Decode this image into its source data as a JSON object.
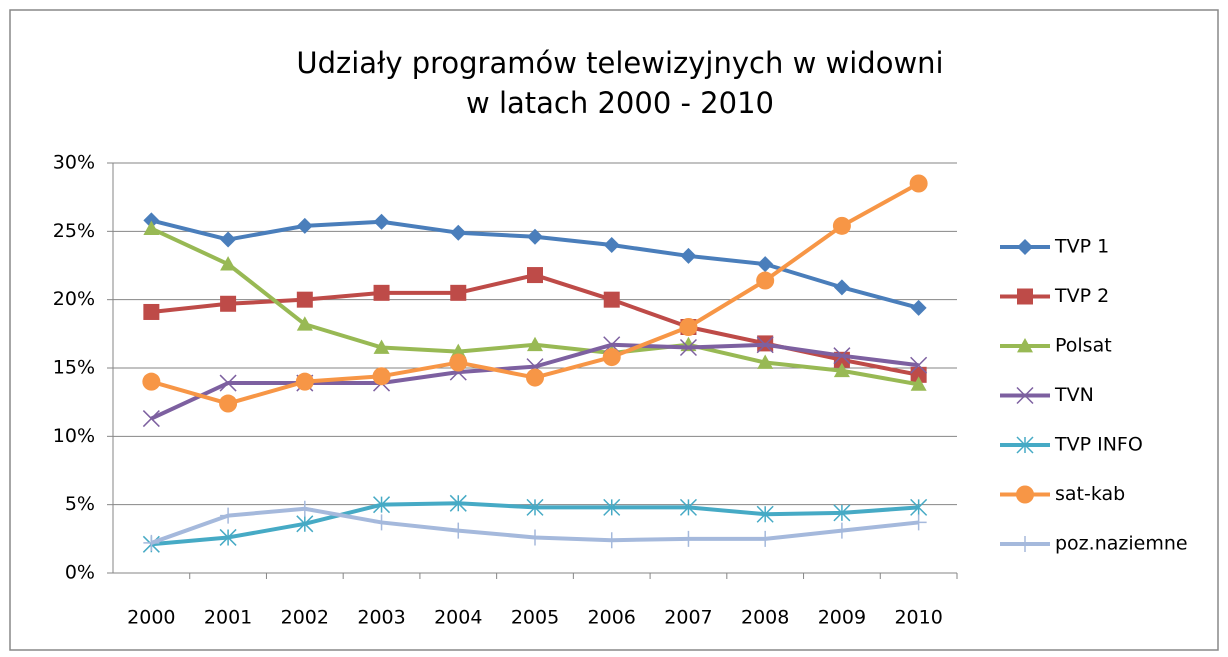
{
  "chart_data": {
    "type": "line",
    "title": [
      "Udziały programów telewizyjnych w widowni",
      "w latach 2000 - 2010"
    ],
    "categories": [
      "2000",
      "2001",
      "2002",
      "2003",
      "2004",
      "2005",
      "2006",
      "2007",
      "2008",
      "2009",
      "2010"
    ],
    "ylim": [
      0,
      30
    ],
    "yticks": [
      {
        "value": 0,
        "label": "0%"
      },
      {
        "value": 5,
        "label": "5%"
      },
      {
        "value": 10,
        "label": "10%"
      },
      {
        "value": 15,
        "label": "15%"
      },
      {
        "value": 20,
        "label": "20%"
      },
      {
        "value": 25,
        "label": "25%"
      },
      {
        "value": 30,
        "label": "30%"
      }
    ],
    "grid": true,
    "legend": "right",
    "series": [
      {
        "name": "TVP 1",
        "color": "#4a7ebb",
        "marker": "diamond",
        "values": [
          25.8,
          24.4,
          25.4,
          25.7,
          24.9,
          24.6,
          24.0,
          23.2,
          22.6,
          20.9,
          19.4
        ]
      },
      {
        "name": "TVP 2",
        "color": "#be4b48",
        "marker": "square",
        "values": [
          19.1,
          19.7,
          20.0,
          20.5,
          20.5,
          21.8,
          20.0,
          18.0,
          16.8,
          15.6,
          14.5
        ]
      },
      {
        "name": "Polsat",
        "color": "#98b954",
        "marker": "triangle",
        "values": [
          25.2,
          22.6,
          18.2,
          16.5,
          16.2,
          16.7,
          16.1,
          16.7,
          15.4,
          14.8,
          13.8
        ]
      },
      {
        "name": "TVN",
        "color": "#7d60a0",
        "marker": "x",
        "values": [
          11.3,
          13.9,
          13.9,
          13.9,
          14.7,
          15.1,
          16.7,
          16.5,
          16.7,
          15.9,
          15.2
        ]
      },
      {
        "name": "TVP INFO",
        "color": "#46aac5",
        "marker": "star",
        "values": [
          2.1,
          2.6,
          3.6,
          5.0,
          5.1,
          4.8,
          4.8,
          4.8,
          4.3,
          4.4,
          4.8
        ]
      },
      {
        "name": "sat-kab",
        "color": "#f79646",
        "marker": "circle",
        "values": [
          14.0,
          12.4,
          14.0,
          14.4,
          15.4,
          14.3,
          15.8,
          18.0,
          21.4,
          25.4,
          28.5
        ]
      },
      {
        "name": "poz.naziemne",
        "color": "#a5b9dc",
        "marker": "plus",
        "values": [
          2.2,
          4.2,
          4.7,
          3.7,
          3.1,
          2.6,
          2.4,
          2.5,
          2.5,
          3.1,
          3.7
        ]
      }
    ]
  }
}
